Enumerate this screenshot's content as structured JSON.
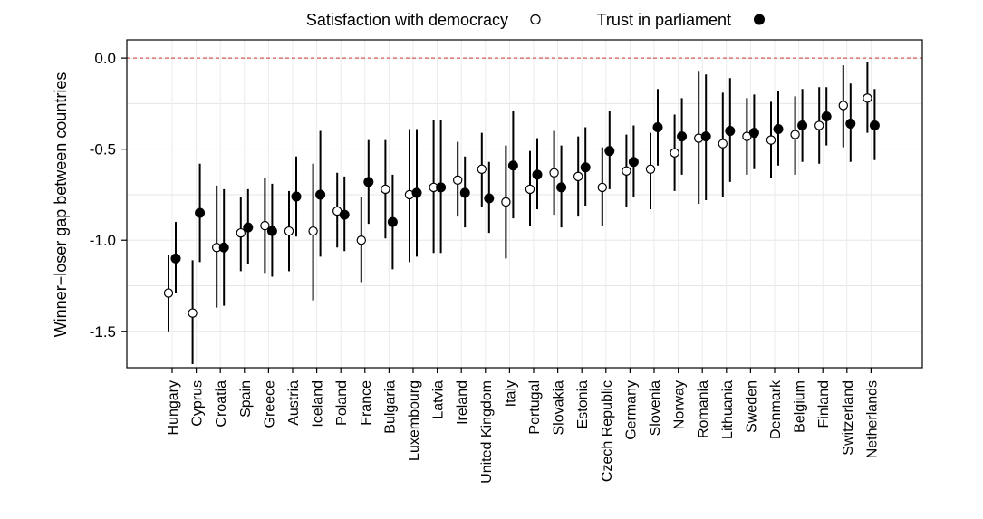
{
  "chart_data": {
    "type": "scatter",
    "ylabel": "Winner−loser gap between countries",
    "xlabel": "",
    "ylim": [
      -1.7,
      0.1
    ],
    "yticks": [
      0.0,
      -0.5,
      -1.0,
      -1.5
    ],
    "ytick_labels": [
      "0.0",
      "-0.5",
      "-1.0",
      "-1.5"
    ],
    "grid": true,
    "reference_line": {
      "y": 0.0,
      "style": "dashed",
      "color": "#cc3333"
    },
    "legend_position": "top",
    "categories": [
      "Hungary",
      "Cyprus",
      "Croatia",
      "Spain",
      "Greece",
      "Austria",
      "Iceland",
      "Poland",
      "France",
      "Bulgaria",
      "Luxembourg",
      "Latvia",
      "Ireland",
      "United Kingdom",
      "Italy",
      "Portugal",
      "Slovakia",
      "Estonia",
      "Czech Republic",
      "Germany",
      "Slovenia",
      "Norway",
      "Romania",
      "Lithuania",
      "Sweden",
      "Denmark",
      "Belgium",
      "Finland",
      "Switzerland",
      "Netherlands"
    ],
    "series": [
      {
        "name": "Satisfaction with democracy",
        "marker": "open-circle",
        "values": [
          -1.29,
          -1.4,
          -1.04,
          -0.96,
          -0.92,
          -0.95,
          -0.95,
          -0.84,
          -1.0,
          -0.72,
          -0.75,
          -0.71,
          -0.67,
          -0.61,
          -0.79,
          -0.72,
          -0.63,
          -0.65,
          -0.71,
          -0.62,
          -0.61,
          -0.52,
          -0.44,
          -0.47,
          -0.43,
          -0.45,
          -0.42,
          -0.37,
          -0.26,
          -0.22
        ],
        "lower": [
          -1.5,
          -1.68,
          -1.37,
          -1.17,
          -1.18,
          -1.17,
          -1.33,
          -1.04,
          -1.23,
          -0.99,
          -1.12,
          -1.07,
          -0.87,
          -0.82,
          -1.1,
          -0.92,
          -0.86,
          -0.87,
          -0.92,
          -0.82,
          -0.83,
          -0.73,
          -0.8,
          -0.76,
          -0.64,
          -0.66,
          -0.64,
          -0.58,
          -0.49,
          -0.41
        ],
        "upper": [
          -1.08,
          -1.11,
          -0.7,
          -0.76,
          -0.66,
          -0.73,
          -0.58,
          -0.63,
          -0.76,
          -0.45,
          -0.39,
          -0.34,
          -0.46,
          -0.41,
          -0.48,
          -0.51,
          -0.4,
          -0.43,
          -0.49,
          -0.42,
          -0.41,
          -0.31,
          -0.07,
          -0.19,
          -0.22,
          -0.24,
          -0.21,
          -0.16,
          -0.04,
          -0.02
        ]
      },
      {
        "name": "Trust in parliament",
        "marker": "filled-circle",
        "values": [
          -1.1,
          -0.85,
          -1.04,
          -0.93,
          -0.95,
          -0.76,
          -0.75,
          -0.86,
          -0.68,
          -0.9,
          -0.74,
          -0.71,
          -0.74,
          -0.77,
          -0.59,
          -0.64,
          -0.71,
          -0.6,
          -0.51,
          -0.57,
          -0.38,
          -0.43,
          -0.43,
          -0.4,
          -0.41,
          -0.39,
          -0.37,
          -0.32,
          -0.36,
          -0.37
        ],
        "lower": [
          -1.29,
          -1.12,
          -1.36,
          -1.13,
          -1.2,
          -0.98,
          -1.09,
          -1.06,
          -0.91,
          -1.16,
          -1.09,
          -1.07,
          -0.93,
          -0.96,
          -0.88,
          -0.83,
          -0.93,
          -0.81,
          -0.72,
          -0.76,
          -0.59,
          -0.64,
          -0.78,
          -0.68,
          -0.61,
          -0.59,
          -0.57,
          -0.48,
          -0.57,
          -0.56
        ],
        "upper": [
          -0.9,
          -0.58,
          -0.72,
          -0.72,
          -0.69,
          -0.54,
          -0.4,
          -0.65,
          -0.45,
          -0.64,
          -0.39,
          -0.34,
          -0.54,
          -0.57,
          -0.29,
          -0.44,
          -0.48,
          -0.38,
          -0.29,
          -0.37,
          -0.17,
          -0.22,
          -0.09,
          -0.11,
          -0.2,
          -0.18,
          -0.17,
          -0.16,
          -0.14,
          -0.17
        ]
      }
    ]
  }
}
